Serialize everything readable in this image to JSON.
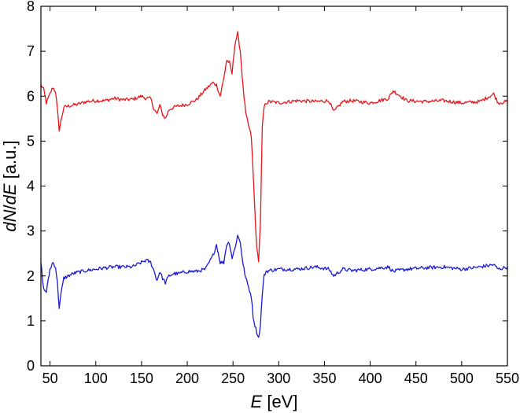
{
  "chart_data": {
    "type": "line",
    "xlabel_italic": "E",
    "xlabel_unit": " [eV]",
    "ylabel_italic_1": "dN",
    "ylabel_sep": "/",
    "ylabel_italic_2": "dE",
    "ylabel_unit": " [a.u.]",
    "xlim": [
      40,
      550
    ],
    "ylim": [
      0,
      8
    ],
    "xticks": [
      50,
      100,
      150,
      200,
      250,
      300,
      350,
      400,
      450,
      500,
      550
    ],
    "yticks": [
      0,
      1,
      2,
      3,
      4,
      5,
      6,
      7,
      8
    ],
    "grid": false,
    "series": [
      {
        "color": "#e8161b",
        "x": [
          40,
          43,
          46,
          50,
          53,
          56,
          58,
          60,
          62,
          65,
          70,
          75,
          80,
          90,
          100,
          110,
          120,
          130,
          140,
          150,
          155,
          160,
          163,
          167,
          170,
          173,
          176,
          180,
          185,
          190,
          200,
          210,
          220,
          228,
          232,
          236,
          240,
          243,
          246,
          249,
          252,
          255,
          258,
          261,
          264,
          267,
          270,
          272,
          274,
          276,
          278,
          280,
          282,
          284,
          286,
          290,
          300,
          320,
          340,
          355,
          360,
          370,
          380,
          400,
          420,
          425,
          440,
          460,
          480,
          500,
          520,
          535,
          540,
          550
        ],
        "y": [
          6.25,
          6.15,
          5.85,
          6.05,
          6.2,
          6.1,
          5.7,
          5.25,
          5.45,
          5.75,
          5.78,
          5.8,
          5.82,
          5.88,
          5.9,
          5.9,
          5.95,
          5.92,
          5.93,
          6.0,
          5.95,
          5.95,
          5.75,
          5.6,
          5.8,
          5.6,
          5.5,
          5.7,
          5.75,
          5.78,
          5.82,
          5.92,
          6.15,
          6.3,
          6.25,
          6.0,
          6.4,
          6.8,
          6.75,
          6.5,
          7.15,
          7.4,
          7.0,
          6.2,
          5.6,
          5.35,
          5.1,
          4.3,
          3.4,
          2.6,
          2.35,
          3.2,
          5.3,
          5.75,
          5.85,
          5.88,
          5.85,
          5.9,
          5.88,
          5.9,
          5.65,
          5.88,
          5.9,
          5.85,
          5.95,
          6.12,
          5.9,
          5.88,
          5.9,
          5.85,
          5.88,
          6.05,
          5.85,
          5.88
        ]
      },
      {
        "color": "#1a1ad6",
        "x": [
          40,
          43,
          46,
          50,
          53,
          56,
          58,
          60,
          62,
          65,
          70,
          75,
          80,
          90,
          100,
          110,
          120,
          130,
          140,
          150,
          155,
          160,
          163,
          167,
          170,
          173,
          176,
          180,
          185,
          190,
          200,
          210,
          220,
          228,
          232,
          236,
          240,
          243,
          246,
          249,
          252,
          255,
          258,
          261,
          264,
          267,
          270,
          272,
          274,
          276,
          278,
          280,
          282,
          284,
          286,
          290,
          300,
          320,
          340,
          355,
          360,
          370,
          380,
          400,
          420,
          425,
          440,
          460,
          480,
          500,
          520,
          535,
          540,
          550
        ],
        "y": [
          2.3,
          1.7,
          1.65,
          2.15,
          2.3,
          2.2,
          1.85,
          1.3,
          1.6,
          1.95,
          2.0,
          2.05,
          2.08,
          2.12,
          2.15,
          2.18,
          2.2,
          2.2,
          2.2,
          2.3,
          2.35,
          2.3,
          2.15,
          1.9,
          2.1,
          1.95,
          1.85,
          2.0,
          2.05,
          2.05,
          2.1,
          2.1,
          2.15,
          2.45,
          2.7,
          2.3,
          2.3,
          2.7,
          2.75,
          2.4,
          2.6,
          2.9,
          2.75,
          2.25,
          1.95,
          1.75,
          1.55,
          1.1,
          0.9,
          0.75,
          0.62,
          0.9,
          1.6,
          2.0,
          2.1,
          2.12,
          2.15,
          2.15,
          2.2,
          2.15,
          2.0,
          2.15,
          2.12,
          2.15,
          2.2,
          2.1,
          2.15,
          2.18,
          2.2,
          2.15,
          2.2,
          2.25,
          2.15,
          2.2
        ]
      }
    ]
  }
}
